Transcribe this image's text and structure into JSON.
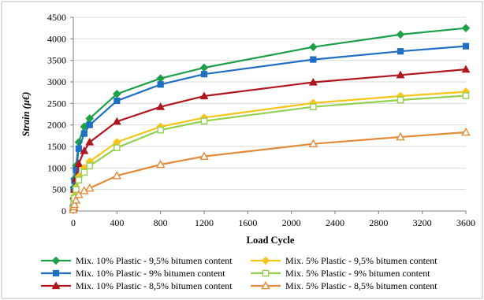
{
  "chart_data": {
    "type": "line",
    "xlabel": "Load Cycle",
    "ylabel": "Strain (µ€)",
    "xlim": [
      0,
      3600
    ],
    "ylim": [
      0,
      4500
    ],
    "xticks": [
      0,
      400,
      800,
      1200,
      1600,
      2000,
      2400,
      2800,
      3200,
      3600
    ],
    "yticks": [
      0,
      500,
      1000,
      1500,
      2000,
      2500,
      3000,
      3500,
      4000,
      4500
    ],
    "grid": "horizontal",
    "legend_position": "bottom",
    "series": [
      {
        "name": "Mix. 10% Plastic - 9,5% bitumen content",
        "color": "#1e9f4a",
        "marker": "diamond",
        "filled": true,
        "x": [
          0,
          5,
          10,
          25,
          50,
          100,
          150,
          400,
          800,
          1200,
          2200,
          3000,
          3600
        ],
        "y": [
          120,
          550,
          750,
          1050,
          1600,
          1960,
          2150,
          2720,
          3080,
          3330,
          3810,
          4100,
          4250
        ]
      },
      {
        "name": "Mix. 10% Plastic - 9% bitumen content",
        "color": "#1f6fc3",
        "marker": "square",
        "filled": true,
        "x": [
          0,
          5,
          10,
          25,
          50,
          100,
          150,
          400,
          800,
          1200,
          2200,
          3000,
          3600
        ],
        "y": [
          100,
          500,
          700,
          950,
          1450,
          1800,
          2000,
          2560,
          2940,
          3180,
          3520,
          3710,
          3830
        ]
      },
      {
        "name": "Mix. 10% Plastic - 8,5% bitumen content",
        "color": "#b0161f",
        "marker": "triangle",
        "filled": true,
        "x": [
          0,
          5,
          10,
          25,
          50,
          100,
          150,
          400,
          800,
          1200,
          2200,
          3000,
          3600
        ],
        "y": [
          80,
          350,
          500,
          750,
          1100,
          1400,
          1600,
          2080,
          2420,
          2670,
          2990,
          3160,
          3290
        ]
      },
      {
        "name": "Mix. 5% Plastic - 9,5% bitumen content",
        "color": "#f5c518",
        "marker": "diamond",
        "filled": true,
        "x": [
          0,
          5,
          10,
          25,
          50,
          100,
          150,
          400,
          800,
          1200,
          2200,
          3000,
          3600
        ],
        "y": [
          60,
          250,
          350,
          550,
          800,
          1000,
          1150,
          1600,
          1960,
          2170,
          2510,
          2670,
          2770
        ]
      },
      {
        "name": "Mix. 5% Plastic - 9% bitumen content",
        "color": "#92d050",
        "marker": "square",
        "filled": false,
        "x": [
          0,
          5,
          10,
          25,
          50,
          100,
          150,
          400,
          800,
          1200,
          2200,
          3000,
          3600
        ],
        "y": [
          50,
          200,
          300,
          500,
          720,
          900,
          1050,
          1470,
          1880,
          2090,
          2420,
          2580,
          2680
        ]
      },
      {
        "name": "Mix. 5% Plastic - 8,5% bitumen content",
        "color": "#e38b3a",
        "marker": "triangle",
        "filled": false,
        "x": [
          0,
          5,
          10,
          25,
          50,
          100,
          150,
          400,
          800,
          1200,
          2200,
          3000,
          3600
        ],
        "y": [
          30,
          100,
          150,
          250,
          380,
          470,
          530,
          820,
          1080,
          1270,
          1560,
          1720,
          1830
        ]
      }
    ]
  }
}
